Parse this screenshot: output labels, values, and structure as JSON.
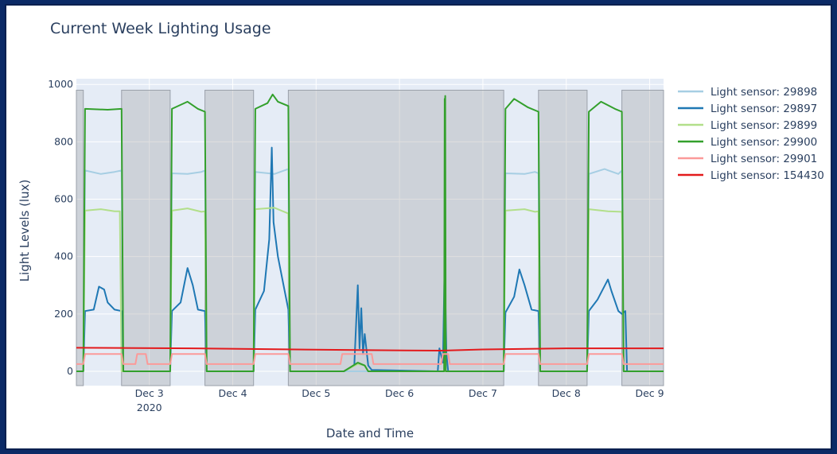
{
  "chart_data": {
    "type": "line",
    "title": "Current Week Lighting Usage",
    "xlabel": "Date and Time",
    "ylabel": "Light Levels (lux)",
    "x_ticks": [
      {
        "day": 3,
        "label": "Dec 3",
        "sublabel": "2020"
      },
      {
        "day": 4,
        "label": "Dec 4",
        "sublabel": ""
      },
      {
        "day": 5,
        "label": "Dec 5",
        "sublabel": ""
      },
      {
        "day": 6,
        "label": "Dec 6",
        "sublabel": ""
      },
      {
        "day": 7,
        "label": "Dec 7",
        "sublabel": ""
      },
      {
        "day": 8,
        "label": "Dec 8",
        "sublabel": ""
      },
      {
        "day": 9,
        "label": "Dec 9",
        "sublabel": ""
      }
    ],
    "xlim": [
      "2020-12-02 03:00",
      "2020-12-09 04:00"
    ],
    "ylim": [
      -50,
      1020
    ],
    "y_ticks": [
      0,
      200,
      400,
      600,
      800,
      1000
    ],
    "grid": true,
    "legend_position": "right",
    "shaded_periods": [
      [
        "2020-12-02 03:00",
        "2020-12-02 05:00"
      ],
      [
        "2020-12-02 16:00",
        "2020-12-03 06:00"
      ],
      [
        "2020-12-03 16:00",
        "2020-12-04 06:00"
      ],
      [
        "2020-12-04 16:00",
        "2020-12-07 06:00"
      ],
      [
        "2020-12-07 16:00",
        "2020-12-08 06:00"
      ],
      [
        "2020-12-08 16:00",
        "2020-12-09 04:00"
      ]
    ],
    "series": [
      {
        "name": "Light sensor: 29898",
        "color": "#a6cee3",
        "points": [
          [
            "2020-12-02 05:00",
            0
          ],
          [
            "2020-12-02 05:30",
            700
          ],
          [
            "2020-12-02 10:00",
            688
          ],
          [
            "2020-12-02 14:00",
            695
          ],
          [
            "2020-12-02 16:00",
            700
          ],
          [
            "2020-12-02 16:30",
            0
          ],
          [
            "2020-12-03 06:00",
            0
          ],
          [
            "2020-12-03 06:30",
            690
          ],
          [
            "2020-12-03 11:00",
            688
          ],
          [
            "2020-12-03 15:00",
            695
          ],
          [
            "2020-12-03 16:00",
            700
          ],
          [
            "2020-12-03 16:30",
            0
          ],
          [
            "2020-12-04 06:00",
            0
          ],
          [
            "2020-12-04 06:30",
            695
          ],
          [
            "2020-12-04 12:00",
            688
          ],
          [
            "2020-12-04 16:00",
            705
          ],
          [
            "2020-12-04 16:30",
            0
          ],
          [
            "2020-12-07 06:00",
            0
          ],
          [
            "2020-12-07 06:30",
            690
          ],
          [
            "2020-12-07 12:00",
            688
          ],
          [
            "2020-12-07 15:00",
            695
          ],
          [
            "2020-12-07 16:00",
            690
          ],
          [
            "2020-12-07 16:30",
            0
          ],
          [
            "2020-12-08 06:00",
            0
          ],
          [
            "2020-12-08 06:30",
            688
          ],
          [
            "2020-12-08 11:00",
            705
          ],
          [
            "2020-12-08 15:00",
            688
          ],
          [
            "2020-12-08 16:00",
            700
          ],
          [
            "2020-12-08 16:30",
            0
          ]
        ]
      },
      {
        "name": "Light sensor: 29897",
        "color": "#1f78b4",
        "points": [
          [
            "2020-12-02 05:00",
            0
          ],
          [
            "2020-12-02 05:30",
            210
          ],
          [
            "2020-12-02 08:00",
            215
          ],
          [
            "2020-12-02 09:30",
            295
          ],
          [
            "2020-12-02 11:00",
            285
          ],
          [
            "2020-12-02 12:00",
            240
          ],
          [
            "2020-12-02 14:00",
            215
          ],
          [
            "2020-12-02 16:00",
            210
          ],
          [
            "2020-12-02 16:30",
            0
          ],
          [
            "2020-12-03 06:00",
            0
          ],
          [
            "2020-12-03 06:30",
            210
          ],
          [
            "2020-12-03 09:00",
            240
          ],
          [
            "2020-12-03 11:00",
            360
          ],
          [
            "2020-12-03 12:30",
            300
          ],
          [
            "2020-12-03 14:00",
            215
          ],
          [
            "2020-12-03 16:00",
            210
          ],
          [
            "2020-12-03 16:30",
            0
          ],
          [
            "2020-12-04 06:00",
            0
          ],
          [
            "2020-12-04 06:30",
            215
          ],
          [
            "2020-12-04 09:00",
            280
          ],
          [
            "2020-12-04 10:30",
            460
          ],
          [
            "2020-12-04 11:15",
            780
          ],
          [
            "2020-12-04 11:45",
            520
          ],
          [
            "2020-12-04 13:00",
            400
          ],
          [
            "2020-12-04 16:00",
            215
          ],
          [
            "2020-12-04 16:30",
            0
          ],
          [
            "2020-12-05 08:00",
            0
          ],
          [
            "2020-12-05 11:00",
            20
          ],
          [
            "2020-12-05 12:00",
            300
          ],
          [
            "2020-12-05 12:30",
            80
          ],
          [
            "2020-12-05 13:00",
            220
          ],
          [
            "2020-12-05 13:30",
            60
          ],
          [
            "2020-12-05 14:00",
            130
          ],
          [
            "2020-12-05 15:00",
            20
          ],
          [
            "2020-12-05 16:00",
            5
          ],
          [
            "2020-12-06 11:00",
            0
          ],
          [
            "2020-12-06 11:30",
            80
          ],
          [
            "2020-12-06 12:30",
            30
          ],
          [
            "2020-12-06 13:00",
            380
          ],
          [
            "2020-12-06 13:30",
            60
          ],
          [
            "2020-12-06 14:00",
            0
          ],
          [
            "2020-12-07 06:00",
            0
          ],
          [
            "2020-12-07 06:30",
            205
          ],
          [
            "2020-12-07 09:00",
            260
          ],
          [
            "2020-12-07 10:30",
            355
          ],
          [
            "2020-12-07 12:00",
            300
          ],
          [
            "2020-12-07 14:00",
            215
          ],
          [
            "2020-12-07 16:00",
            210
          ],
          [
            "2020-12-07 16:30",
            0
          ],
          [
            "2020-12-08 06:00",
            0
          ],
          [
            "2020-12-08 06:30",
            210
          ],
          [
            "2020-12-08 09:00",
            250
          ],
          [
            "2020-12-08 12:00",
            320
          ],
          [
            "2020-12-08 13:00",
            280
          ],
          [
            "2020-12-08 15:00",
            210
          ],
          [
            "2020-12-08 16:00",
            200
          ],
          [
            "2020-12-08 17:00",
            210
          ],
          [
            "2020-12-08 17:30",
            0
          ]
        ]
      },
      {
        "name": "Light sensor: 29899",
        "color": "#b2df8a",
        "points": [
          [
            "2020-12-02 05:00",
            0
          ],
          [
            "2020-12-02 05:30",
            560
          ],
          [
            "2020-12-02 10:00",
            565
          ],
          [
            "2020-12-02 14:00",
            558
          ],
          [
            "2020-12-02 15:30",
            558
          ],
          [
            "2020-12-02 16:00",
            0
          ],
          [
            "2020-12-03 06:00",
            0
          ],
          [
            "2020-12-03 06:30",
            560
          ],
          [
            "2020-12-03 11:00",
            568
          ],
          [
            "2020-12-03 15:00",
            556
          ],
          [
            "2020-12-03 16:00",
            558
          ],
          [
            "2020-12-03 16:30",
            0
          ],
          [
            "2020-12-04 06:00",
            0
          ],
          [
            "2020-12-04 06:30",
            565
          ],
          [
            "2020-12-04 12:00",
            570
          ],
          [
            "2020-12-04 16:00",
            550
          ],
          [
            "2020-12-04 16:30",
            0
          ],
          [
            "2020-12-05 08:00",
            0
          ],
          [
            "2020-12-05 12:00",
            25
          ],
          [
            "2020-12-05 14:00",
            20
          ],
          [
            "2020-12-05 15:00",
            0
          ],
          [
            "2020-12-07 06:00",
            0
          ],
          [
            "2020-12-07 06:30",
            560
          ],
          [
            "2020-12-07 12:00",
            565
          ],
          [
            "2020-12-07 15:00",
            556
          ],
          [
            "2020-12-07 16:00",
            558
          ],
          [
            "2020-12-07 16:30",
            0
          ],
          [
            "2020-12-08 06:00",
            0
          ],
          [
            "2020-12-08 06:30",
            565
          ],
          [
            "2020-12-08 12:00",
            558
          ],
          [
            "2020-12-08 16:00",
            556
          ],
          [
            "2020-12-08 16:30",
            0
          ]
        ]
      },
      {
        "name": "Light sensor: 29900",
        "color": "#33a02c",
        "points": [
          [
            "2020-12-02 03:00",
            0
          ],
          [
            "2020-12-02 05:00",
            0
          ],
          [
            "2020-12-02 05:30",
            915
          ],
          [
            "2020-12-02 12:00",
            912
          ],
          [
            "2020-12-02 16:00",
            915
          ],
          [
            "2020-12-02 16:30",
            0
          ],
          [
            "2020-12-03 06:00",
            0
          ],
          [
            "2020-12-03 06:30",
            915
          ],
          [
            "2020-12-03 11:00",
            940
          ],
          [
            "2020-12-03 14:00",
            915
          ],
          [
            "2020-12-03 16:00",
            905
          ],
          [
            "2020-12-03 16:30",
            0
          ],
          [
            "2020-12-04 06:00",
            0
          ],
          [
            "2020-12-04 06:30",
            915
          ],
          [
            "2020-12-04 10:00",
            935
          ],
          [
            "2020-12-04 11:30",
            965
          ],
          [
            "2020-12-04 13:00",
            940
          ],
          [
            "2020-12-04 16:00",
            925
          ],
          [
            "2020-12-04 16:30",
            0
          ],
          [
            "2020-12-05 08:00",
            0
          ],
          [
            "2020-12-05 12:00",
            30
          ],
          [
            "2020-12-05 14:00",
            20
          ],
          [
            "2020-12-05 15:00",
            0
          ],
          [
            "2020-12-06 11:00",
            0
          ],
          [
            "2020-12-06 12:50",
            0
          ],
          [
            "2020-12-06 13:00",
            950
          ],
          [
            "2020-12-06 13:05",
            100
          ],
          [
            "2020-12-06 13:10",
            960
          ],
          [
            "2020-12-06 13:20",
            0
          ],
          [
            "2020-12-07 06:00",
            0
          ],
          [
            "2020-12-07 06:30",
            915
          ],
          [
            "2020-12-07 09:00",
            950
          ],
          [
            "2020-12-07 13:00",
            920
          ],
          [
            "2020-12-07 16:00",
            905
          ],
          [
            "2020-12-07 16:30",
            0
          ],
          [
            "2020-12-08 06:00",
            0
          ],
          [
            "2020-12-08 06:30",
            905
          ],
          [
            "2020-12-08 10:00",
            940
          ],
          [
            "2020-12-08 14:00",
            915
          ],
          [
            "2020-12-08 16:00",
            905
          ],
          [
            "2020-12-08 16:30",
            0
          ],
          [
            "2020-12-09 04:00",
            0
          ]
        ]
      },
      {
        "name": "Light sensor: 29901",
        "color": "#fb9a99",
        "points": [
          [
            "2020-12-02 03:00",
            25
          ],
          [
            "2020-12-02 05:00",
            25
          ],
          [
            "2020-12-02 05:30",
            60
          ],
          [
            "2020-12-02 16:00",
            60
          ],
          [
            "2020-12-02 16:30",
            25
          ],
          [
            "2020-12-02 20:00",
            25
          ],
          [
            "2020-12-02 20:30",
            60
          ],
          [
            "2020-12-02 23:00",
            60
          ],
          [
            "2020-12-02 23:30",
            25
          ],
          [
            "2020-12-03 06:00",
            25
          ],
          [
            "2020-12-03 06:30",
            60
          ],
          [
            "2020-12-03 16:00",
            60
          ],
          [
            "2020-12-03 16:30",
            25
          ],
          [
            "2020-12-04 06:00",
            25
          ],
          [
            "2020-12-04 06:30",
            60
          ],
          [
            "2020-12-04 16:00",
            60
          ],
          [
            "2020-12-04 16:30",
            25
          ],
          [
            "2020-12-05 07:00",
            25
          ],
          [
            "2020-12-05 07:30",
            60
          ],
          [
            "2020-12-05 16:00",
            60
          ],
          [
            "2020-12-05 16:30",
            25
          ],
          [
            "2020-12-06 12:00",
            25
          ],
          [
            "2020-12-06 12:30",
            60
          ],
          [
            "2020-12-06 14:00",
            60
          ],
          [
            "2020-12-06 14:30",
            25
          ],
          [
            "2020-12-07 06:00",
            25
          ],
          [
            "2020-12-07 06:30",
            60
          ],
          [
            "2020-12-07 16:00",
            60
          ],
          [
            "2020-12-07 16:30",
            25
          ],
          [
            "2020-12-08 06:00",
            25
          ],
          [
            "2020-12-08 06:30",
            60
          ],
          [
            "2020-12-08 16:00",
            60
          ],
          [
            "2020-12-08 16:30",
            25
          ],
          [
            "2020-12-09 04:00",
            25
          ]
        ]
      },
      {
        "name": "Light sensor: 154430",
        "color": "#e31a1c",
        "points": [
          [
            "2020-12-02 03:00",
            82
          ],
          [
            "2020-12-03 12:00",
            80
          ],
          [
            "2020-12-05 12:00",
            74
          ],
          [
            "2020-12-06 12:00",
            72
          ],
          [
            "2020-12-07 00:00",
            76
          ],
          [
            "2020-12-08 00:00",
            80
          ],
          [
            "2020-12-09 04:00",
            80
          ]
        ]
      }
    ]
  }
}
